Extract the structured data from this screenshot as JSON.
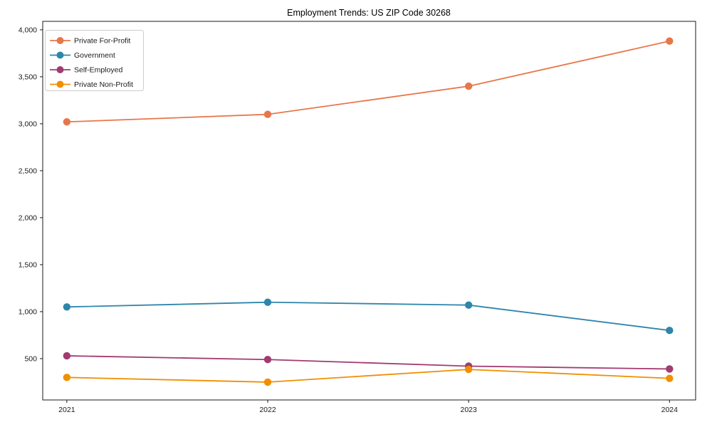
{
  "chart_data": {
    "type": "line",
    "title": "Employment Trends: US ZIP Code 30268",
    "categories": [
      "2021",
      "2022",
      "2023",
      "2024"
    ],
    "series": [
      {
        "name": "Private For-Profit",
        "color": "#E8764B",
        "values": [
          3020,
          3100,
          3400,
          3880
        ]
      },
      {
        "name": "Government",
        "color": "#2E86AB",
        "values": [
          1050,
          1100,
          1070,
          800
        ]
      },
      {
        "name": "Self-Employed",
        "color": "#A23B72",
        "values": [
          530,
          490,
          420,
          390
        ]
      },
      {
        "name": "Private Non-Profit",
        "color": "#F18F01",
        "values": [
          300,
          250,
          385,
          290
        ]
      }
    ],
    "xlabel": "",
    "ylabel": "",
    "xlim": [
      2020.88,
      2024.13
    ],
    "ylim": [
      60,
      4090
    ],
    "yticks": [
      500,
      1000,
      1500,
      2000,
      2500,
      3000,
      3500,
      4000
    ],
    "ytick_labels": [
      "500",
      "1,000",
      "1,500",
      "2,000",
      "2,500",
      "3,000",
      "3,500",
      "4,000"
    ],
    "grid": false,
    "legend_position": "upper-left",
    "marker": "circle",
    "spine_color": "#1a1a1a",
    "legend_border_color": "#cccccc"
  }
}
